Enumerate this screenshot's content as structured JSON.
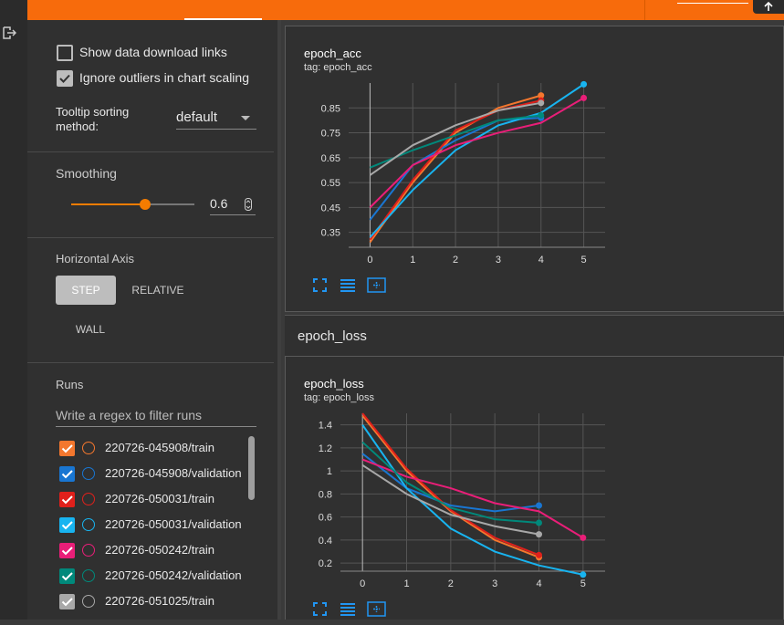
{
  "sidebar": {
    "show_download_links": "Show data download links",
    "ignore_outliers": "Ignore outliers in chart scaling",
    "tooltip_label": "Tooltip sorting method:",
    "tooltip_value": "default",
    "smoothing_label": "Smoothing",
    "smoothing": 0.6,
    "horizontal_axis_label": "Horizontal Axis",
    "axis_options": [
      "STEP",
      "RELATIVE",
      "WALL"
    ],
    "runs_label": "Runs",
    "runs_filter_placeholder": "Write a regex to filter runs",
    "runs": [
      {
        "name": "220726-045908/train",
        "color": "#f4772e"
      },
      {
        "name": "220726-045908/validation",
        "color": "#1976d2"
      },
      {
        "name": "220726-050031/train",
        "color": "#e0201b"
      },
      {
        "name": "220726-050031/validation",
        "color": "#18b4f0"
      },
      {
        "name": "220726-050242/train",
        "color": "#e91e78"
      },
      {
        "name": "220726-050242/validation",
        "color": "#00897b"
      },
      {
        "name": "220726-051025/train",
        "color": "#a8a8a8"
      }
    ]
  },
  "group_header": "epoch_loss",
  "chart_data": [
    {
      "type": "line",
      "title": "epoch_acc",
      "subtitle": "tag: epoch_acc",
      "x": [
        0,
        1,
        2,
        3,
        4,
        5
      ],
      "xlim": [
        -0.5,
        5.5
      ],
      "xticks": [
        0,
        1,
        2,
        3,
        4,
        5
      ],
      "ylim": [
        0.29,
        0.95
      ],
      "yticks": [
        0.35,
        0.45,
        0.55,
        0.65,
        0.75,
        0.85
      ],
      "grid": true,
      "series": [
        {
          "name": "220726-045908/train",
          "color": "#f4772e",
          "values": [
            0.31,
            0.55,
            0.75,
            0.85,
            0.9,
            null
          ]
        },
        {
          "name": "220726-045908/validation",
          "color": "#1976d2",
          "values": [
            0.4,
            0.62,
            0.72,
            0.8,
            0.81,
            null
          ]
        },
        {
          "name": "220726-050031/train",
          "color": "#e0201b",
          "values": [
            0.32,
            0.56,
            0.76,
            0.84,
            0.88,
            null
          ]
        },
        {
          "name": "220726-050031/validation",
          "color": "#18b4f0",
          "values": [
            0.33,
            0.52,
            0.68,
            0.78,
            0.83,
            0.945
          ]
        },
        {
          "name": "220726-050242/train",
          "color": "#e91e78",
          "values": [
            0.45,
            0.62,
            0.7,
            0.75,
            0.79,
            0.89
          ]
        },
        {
          "name": "220726-050242/validation",
          "color": "#00897b",
          "values": [
            0.61,
            0.68,
            0.74,
            0.8,
            0.82,
            null
          ]
        },
        {
          "name": "220726-051025/train",
          "color": "#a8a8a8",
          "values": [
            0.58,
            0.7,
            0.78,
            0.84,
            0.87,
            null
          ]
        }
      ]
    },
    {
      "type": "line",
      "title": "epoch_loss",
      "subtitle": "tag: epoch_loss",
      "x": [
        0,
        1,
        2,
        3,
        4,
        5
      ],
      "xlim": [
        -0.5,
        5.5
      ],
      "xticks": [
        0,
        1,
        2,
        3,
        4,
        5
      ],
      "ylim": [
        0.13,
        1.5
      ],
      "yticks": [
        0.2,
        0.4,
        0.6,
        0.8,
        1,
        1.2,
        1.4
      ],
      "grid": true,
      "series": [
        {
          "name": "220726-045908/train",
          "color": "#f4772e",
          "values": [
            1.48,
            1.0,
            0.65,
            0.4,
            0.25,
            null
          ]
        },
        {
          "name": "220726-045908/validation",
          "color": "#1976d2",
          "values": [
            1.15,
            0.85,
            0.7,
            0.65,
            0.7,
            null
          ]
        },
        {
          "name": "220726-050031/train",
          "color": "#e0201b",
          "values": [
            1.5,
            1.02,
            0.66,
            0.42,
            0.27,
            null
          ]
        },
        {
          "name": "220726-050031/validation",
          "color": "#18b4f0",
          "values": [
            1.4,
            0.85,
            0.5,
            0.3,
            0.18,
            0.1
          ]
        },
        {
          "name": "220726-050242/train",
          "color": "#e91e78",
          "values": [
            1.1,
            0.95,
            0.85,
            0.72,
            0.65,
            0.42
          ]
        },
        {
          "name": "220726-050242/validation",
          "color": "#00897b",
          "values": [
            1.25,
            0.9,
            0.68,
            0.58,
            0.55,
            null
          ]
        },
        {
          "name": "220726-051025/train",
          "color": "#a8a8a8",
          "values": [
            1.05,
            0.8,
            0.62,
            0.52,
            0.45,
            null
          ]
        }
      ]
    }
  ]
}
